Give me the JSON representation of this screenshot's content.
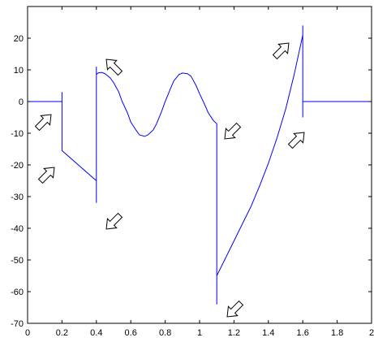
{
  "chart_data": {
    "type": "line",
    "title": "",
    "xlabel": "",
    "ylabel": "",
    "xlim": [
      0,
      2
    ],
    "ylim": [
      -70,
      30
    ],
    "grid": false,
    "x_ticks": [
      0,
      0.2,
      0.4,
      0.6,
      0.8,
      1,
      1.2,
      1.4,
      1.6,
      1.8,
      2
    ],
    "x_tick_labels": [
      "0",
      "0.2",
      "0.4",
      "0.6",
      "0.8",
      "1",
      "1.2",
      "1.4",
      "1.6",
      "1.8",
      "2"
    ],
    "y_ticks": [
      -70,
      -60,
      -50,
      -40,
      -30,
      -20,
      -10,
      0,
      10,
      20
    ],
    "y_tick_labels": [
      "-70",
      "-60",
      "-50",
      "-40",
      "-30",
      "-20",
      "-10",
      "0",
      "10",
      "20"
    ],
    "line_color": "#0000ff",
    "series": [
      {
        "x": [
          0,
          0.2,
          0.2,
          0.2,
          0.2,
          0.4,
          0.4,
          0.4,
          0.4,
          0.41,
          0.43,
          0.45,
          0.48,
          0.5,
          0.53,
          0.55,
          0.58,
          0.6,
          0.63,
          0.65,
          0.68,
          0.7,
          0.73,
          0.75,
          0.78,
          0.8,
          0.83,
          0.85,
          0.88,
          0.9,
          0.93,
          0.95,
          0.98,
          1.0,
          1.03,
          1.05,
          1.08,
          1.1,
          1.1,
          1.1,
          1.1,
          1.15,
          1.2,
          1.25,
          1.3,
          1.35,
          1.4,
          1.45,
          1.5,
          1.55,
          1.6,
          1.6,
          1.6,
          1.6,
          2.0
        ],
        "y": [
          0,
          0,
          3,
          -15.5,
          -15.5,
          -25,
          -32,
          11,
          8.5,
          9,
          9.2,
          8.8,
          7.5,
          6,
          3,
          0,
          -3.5,
          -6.5,
          -9,
          -10.5,
          -11,
          -10.5,
          -9,
          -7,
          -3,
          0,
          4,
          6.5,
          8.5,
          9,
          8.8,
          8,
          5,
          2.5,
          -1,
          -3.5,
          -6,
          -7,
          -64,
          -63,
          -55,
          -49.5,
          -44,
          -38.5,
          -33,
          -26.5,
          -19.5,
          -11.5,
          -2.5,
          8.5,
          21,
          24,
          -5,
          0,
          0
        ]
      }
    ]
  },
  "annotations": {
    "arrow_count": 8,
    "arrow_icon": "hollow-arrow-icon"
  }
}
